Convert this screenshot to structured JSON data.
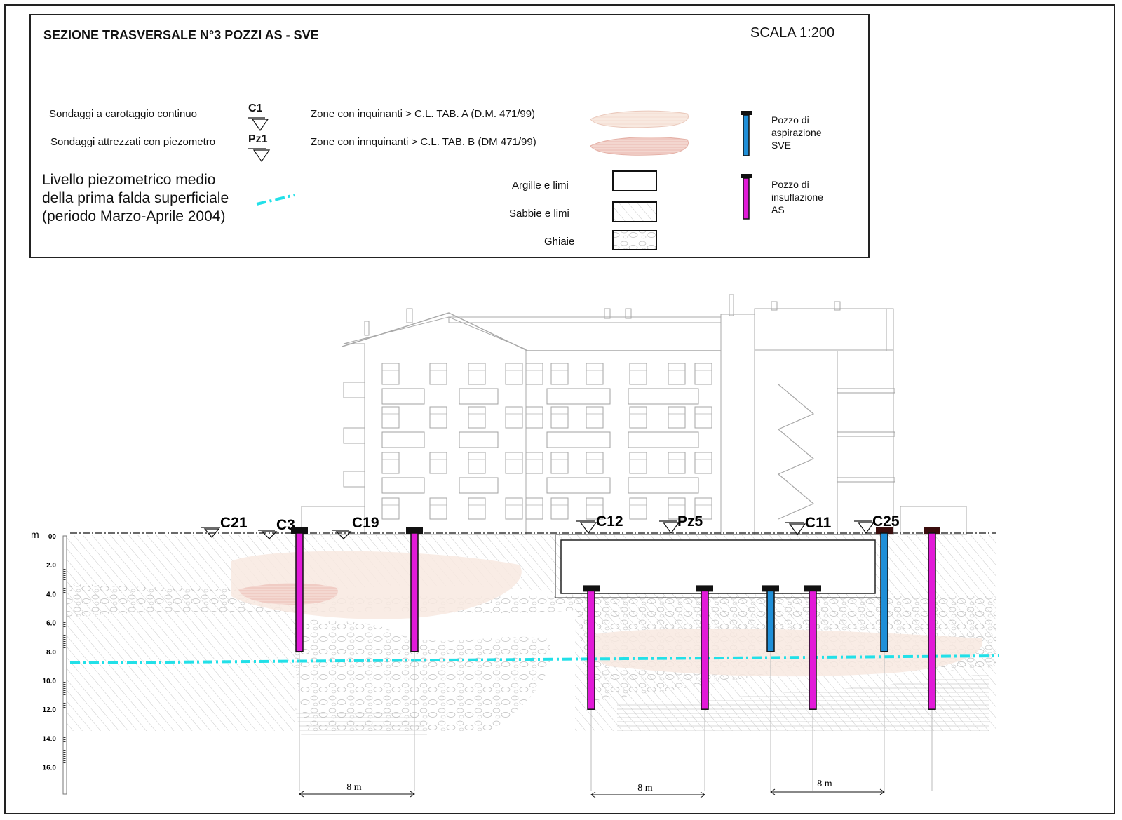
{
  "title": "SEZIONE TRASVERSALE N°3 POZZI AS - SVE",
  "scale": "SCALA 1:200",
  "legend": {
    "carotaggio": {
      "label": "Sondaggi a carotaggio continuo",
      "code": "C1"
    },
    "piezometro": {
      "label": "Sondaggi attrezzati con piezometro",
      "code": "Pz1"
    },
    "falda": {
      "line1": "Livello piezometrico medio",
      "line2": "della prima falda superficiale",
      "line3": "(periodo Marzo-Aprile 2004)"
    },
    "zona_a": "Zone con inquinanti > C.L.  TAB.  A (D.M. 471/99)",
    "zona_b": "Zone con innquinanti > C.L. TAB.  B  (DM 471/99)",
    "argille": "Argille e limi",
    "sabbie": "Sabbie e limi",
    "ghiaie": "Ghiaie",
    "sve": {
      "line1": "Pozzo di",
      "line2": "aspirazione",
      "line3": "SVE"
    },
    "as": {
      "line1": "Pozzo di",
      "line2": "insuflazione",
      "line3": "AS"
    }
  },
  "colors": {
    "sve_well": "#1f8fd8",
    "as_well": "#e21ad8",
    "water_table": "#22e0e8",
    "zone_a": "#f7e6dc",
    "zone_b": "#f1cfc6"
  },
  "section": {
    "depth_unit": "m",
    "depth_ticks": [
      "00",
      "2.0",
      "4.0",
      "6.0",
      "8.0",
      "10.0",
      "12.0",
      "14.0",
      "16.0"
    ],
    "boreholes": [
      "C21",
      "C3",
      "C19",
      "C12",
      "Pz5",
      "C11",
      "C25"
    ],
    "wells": [
      {
        "type": "AS",
        "top_m": 0,
        "bottom_m": 8
      },
      {
        "type": "AS",
        "top_m": 0,
        "bottom_m": 8
      },
      {
        "type": "AS",
        "top_m": 4,
        "bottom_m": 12
      },
      {
        "type": "AS",
        "top_m": 4,
        "bottom_m": 12
      },
      {
        "type": "SVE",
        "top_m": 4,
        "bottom_m": 8
      },
      {
        "type": "AS",
        "top_m": 4,
        "bottom_m": 12
      },
      {
        "type": "SVE",
        "top_m": 0,
        "bottom_m": 8
      },
      {
        "type": "AS",
        "top_m": 0,
        "bottom_m": 12
      }
    ],
    "dimensions": [
      "8 m",
      "8 m",
      "8 m"
    ]
  }
}
